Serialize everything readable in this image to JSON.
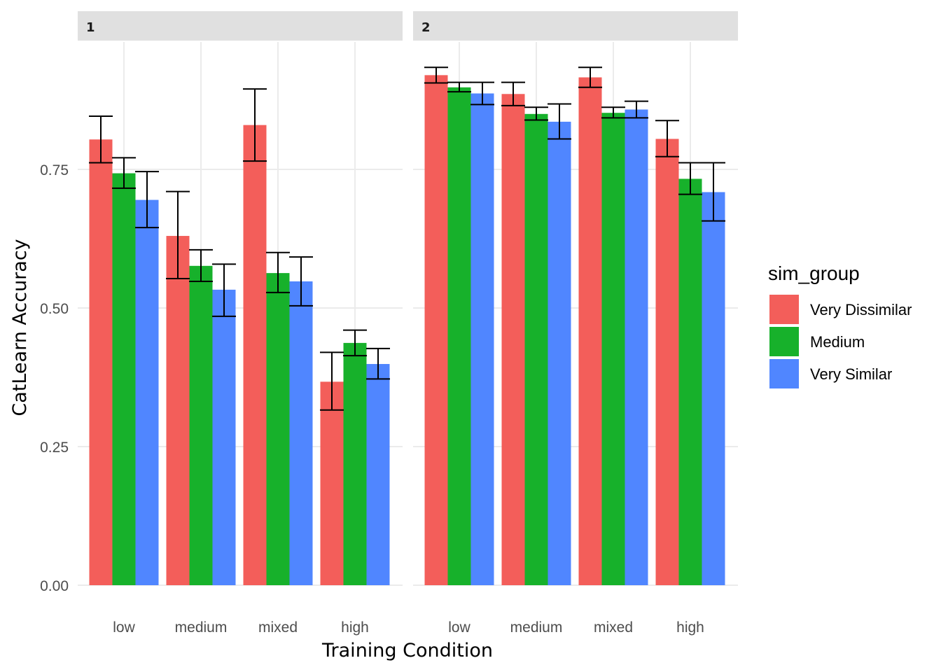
{
  "chart_data": {
    "type": "bar",
    "xlabel": "Training Condition",
    "ylabel": "CatLearn Accuracy",
    "ylim": [
      0,
      0.98
    ],
    "yticks": [
      0,
      0.25,
      0.5,
      0.75
    ],
    "ytick_labels": [
      "0.00",
      "0.25",
      "0.50",
      "0.75"
    ],
    "grid": true,
    "legend": {
      "title": "sim_group",
      "placement": "right",
      "entries": [
        {
          "name": "Very Dissimilar",
          "color": "#f35e5a"
        },
        {
          "name": "Medium",
          "color": "#17b12b"
        },
        {
          "name": "Very Similar",
          "color": "#5086ff"
        }
      ]
    },
    "categories": [
      "low",
      "medium",
      "mixed",
      "high"
    ],
    "panels": [
      {
        "label": "1",
        "series": [
          {
            "name": "Very Dissimilar",
            "values": [
              0.804,
              0.63,
              0.83,
              0.367
            ],
            "err_low": [
              0.762,
              0.553,
              0.765,
              0.316
            ],
            "err_high": [
              0.846,
              0.71,
              0.895,
              0.42
            ]
          },
          {
            "name": "Medium",
            "values": [
              0.743,
              0.576,
              0.563,
              0.437
            ],
            "err_low": [
              0.716,
              0.548,
              0.528,
              0.414
            ],
            "err_high": [
              0.771,
              0.605,
              0.6,
              0.46
            ]
          },
          {
            "name": "Very Similar",
            "values": [
              0.695,
              0.533,
              0.548,
              0.399
            ],
            "err_low": [
              0.645,
              0.485,
              0.504,
              0.372
            ],
            "err_high": [
              0.746,
              0.579,
              0.592,
              0.427
            ]
          }
        ]
      },
      {
        "label": "2",
        "series": [
          {
            "name": "Very Dissimilar",
            "values": [
              0.92,
              0.886,
              0.916,
              0.805
            ],
            "err_low": [
              0.906,
              0.865,
              0.898,
              0.773
            ],
            "err_high": [
              0.934,
              0.907,
              0.934,
              0.838
            ]
          },
          {
            "name": "Medium",
            "values": [
              0.898,
              0.85,
              0.852,
              0.733
            ],
            "err_low": [
              0.89,
              0.839,
              0.843,
              0.705
            ],
            "err_high": [
              0.907,
              0.862,
              0.862,
              0.762
            ]
          },
          {
            "name": "Very Similar",
            "values": [
              0.887,
              0.836,
              0.858,
              0.709
            ],
            "err_low": [
              0.867,
              0.805,
              0.843,
              0.657
            ],
            "err_high": [
              0.907,
              0.868,
              0.873,
              0.762
            ]
          }
        ]
      }
    ]
  }
}
